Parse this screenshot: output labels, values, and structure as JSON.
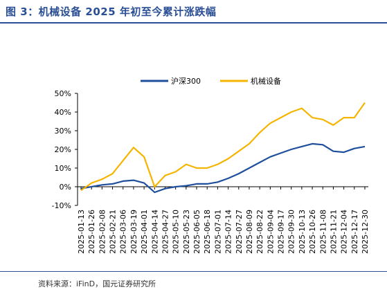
{
  "header": {
    "title": "图 3：机械设备 2025 年初至今累计涨跌幅"
  },
  "footer": {
    "source": "资料来源：iFinD，国元证券研究所"
  },
  "chart_data": {
    "type": "line",
    "title": "图 3：机械设备 2025 年初至今累计涨跌幅",
    "xlabel": "",
    "ylabel": "",
    "ylim": [
      -10,
      50
    ],
    "yticks": [
      "-10%",
      "0%",
      "10%",
      "20%",
      "30%",
      "40%",
      "50%"
    ],
    "grid": false,
    "legend": "top",
    "x": [
      "2025-01-13",
      "2025-01-26",
      "2025-02-08",
      "2025-02-21",
      "2025-03-06",
      "2025-03-19",
      "2025-04-01",
      "2025-04-14",
      "2025-04-27",
      "2025-05-10",
      "2025-05-23",
      "2025-06-05",
      "2025-06-18",
      "2025-07-01",
      "2025-07-14",
      "2025-07-27",
      "2025-08-09",
      "2025-08-22",
      "2025-09-04",
      "2025-09-17",
      "2025-09-30",
      "2025-10-13",
      "2025-10-26",
      "2025-11-08",
      "2025-11-21",
      "2025-12-04",
      "2025-12-17",
      "2025-12-30"
    ],
    "series": [
      {
        "name": "沪深300",
        "color": "#1f4e9c",
        "values": [
          -1,
          0,
          1,
          1.5,
          3,
          3.5,
          2,
          -3,
          -1,
          0,
          0.5,
          1.5,
          1.5,
          2.5,
          4.5,
          7,
          10,
          13,
          16,
          18,
          20,
          21.5,
          23,
          22.5,
          19,
          18.5,
          20.5,
          21.5
        ]
      },
      {
        "name": "机械设备",
        "color": "#f5b400",
        "values": [
          -2,
          2,
          4,
          7,
          14,
          21,
          16,
          0,
          6,
          8,
          12,
          10,
          10,
          12,
          15,
          19,
          23,
          29,
          34,
          37,
          40,
          42,
          37,
          36,
          33,
          37,
          37,
          45
        ]
      }
    ]
  }
}
